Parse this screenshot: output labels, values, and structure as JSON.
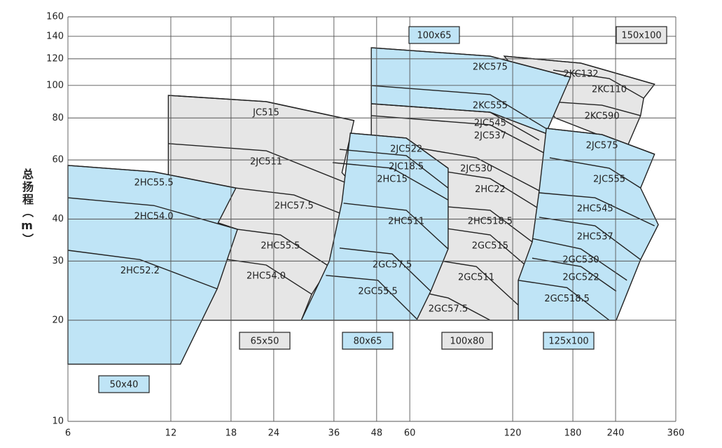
{
  "chart_data": {
    "type": "region",
    "y_label": "总扬程（m）",
    "xlim": [
      6,
      360
    ],
    "ylim": [
      10,
      160
    ],
    "log_x": true,
    "log_y": true,
    "grid": true,
    "xticks": [
      6,
      12,
      18,
      24,
      36,
      48,
      60,
      120,
      180,
      240,
      360
    ],
    "yticks": [
      10,
      20,
      30,
      40,
      60,
      80,
      100,
      120,
      140,
      160
    ],
    "groups": [
      {
        "name": "65x50",
        "color": "#e6e6e6",
        "x": [
          11.8,
          22.8,
          41.2,
          38,
          41.2,
          38,
          41.2,
          34.9,
          31,
          28.9,
          11.8
        ],
        "y": [
          93.4,
          89.5,
          78.6,
          55,
          50.2,
          44,
          40.1,
          28.9,
          23.9,
          20,
          20
        ],
        "curves": [
          {
            "name": "JC515",
            "x": [
              11.8,
              22.8,
              41.2
            ],
            "y": [
              93.4,
              89.5,
              78.6
            ]
          },
          {
            "name": "2JC511",
            "x": [
              11.8,
              22.8,
              41.2
            ],
            "y": [
              67.1,
              63.9,
              50.2
            ]
          },
          {
            "name": "2HC57.5",
            "x": [
              18.6,
              27.5,
              41.2
            ],
            "y": [
              49.5,
              47.2,
              40.1
            ]
          },
          {
            "name": "2HC55.5",
            "x": [
              18.8,
              25.1,
              34.9
            ],
            "y": [
              37.3,
              35.9,
              28.9
            ]
          },
          {
            "name": "2HC54.0",
            "x": [
              16.5,
              22.8,
              31
            ],
            "y": [
              30.6,
              29.2,
              23.9
            ]
          }
        ]
      },
      {
        "name": "50x40",
        "color": "#bfe4f6",
        "x": [
          6,
          10.7,
          18.6,
          16.5,
          18.8,
          16.4,
          12.8,
          6
        ],
        "y": [
          57.8,
          55.3,
          49.5,
          39.0,
          37.3,
          24.8,
          14.8,
          14.8
        ],
        "curves": [
          {
            "name": "2HC55.5",
            "x": [
              6,
              10.7,
              18.6
            ],
            "y": [
              57.8,
              55.3,
              49.5
            ]
          },
          {
            "name": "2HC54.0",
            "x": [
              6,
              10.7,
              18.8
            ],
            "y": [
              46.3,
              43.9,
              37.3
            ]
          },
          {
            "name": "2HC52.2",
            "x": [
              6,
              9.75,
              16.4
            ],
            "y": [
              32.3,
              30.3,
              24.8
            ]
          }
        ]
      },
      {
        "name": "100x80",
        "color": "#e6e6e6",
        "x": [
          46.3,
          103.1,
          150,
          157.7,
          143.5,
          143.5,
          136.9,
          143.5,
          127.6,
          125,
          46.3
        ],
        "y": [
          88.2,
          83.2,
          72,
          60.9,
          48.6,
          42.9,
          34.2,
          26.9,
          21.7,
          20,
          20
        ],
        "curves": [
          {
            "name": "2JC537",
            "x": [
              46.3,
              103.1,
              157.7
            ],
            "y": [
              81.3,
              76.3,
              60.9
            ]
          },
          {
            "name": "2JC530",
            "x": [
              53.3,
              93.9,
              143.5
            ],
            "y": [
              67.1,
              60.9,
              48.6
            ]
          },
          {
            "name": "2HC22",
            "x": [
              65.9,
              103.1,
              143.5
            ],
            "y": [
              56.7,
              52.8,
              42.9
            ]
          },
          {
            "name": "2HC518.5",
            "x": [
              77.7,
              103.1,
              136.9
            ],
            "y": [
              43.5,
              42.5,
              34.2
            ]
          },
          {
            "name": "2GC515",
            "x": [
              74.2,
              103.1,
              143.5
            ],
            "y": [
              37.7,
              35.9,
              26.9
            ]
          },
          {
            "name": "2GC511",
            "x": [
              65.9,
              93.9,
              127.6
            ],
            "y": [
              30.6,
              28.9,
              21.7
            ]
          },
          {
            "name": "2GC57.5",
            "x": [
              58.6,
              77.7,
              103.1
            ],
            "y": [
              24.8,
              23.3,
              20
            ]
          }
        ]
      },
      {
        "name": "80x65",
        "color": "#bfe4f6",
        "x": [
          40.2,
          58.6,
          77.7,
          77.7,
          69.1,
          62.8,
          28.9,
          34.9,
          38
        ],
        "y": [
          72.1,
          69.7,
          56.7,
          32.6,
          24.4,
          20,
          20,
          30,
          45
        ],
        "curves": [
          {
            "name": "2JC522",
            "x": [
              40.2,
              58.6,
              77.7
            ],
            "y": [
              72.1,
              69.7,
              56.7
            ]
          },
          {
            "name": "2JC18.5",
            "x": [
              37.4,
              58.6,
              77.7
            ],
            "y": [
              64.5,
              61.8,
              49.5
            ]
          },
          {
            "name": "2HC15",
            "x": [
              35.7,
              53.3,
              77.7
            ],
            "y": [
              58.9,
              56.7,
              45.6
            ]
          },
          {
            "name": "2HC511",
            "x": [
              38.4,
              58.6,
              77.7
            ],
            "y": [
              44.6,
              42.5,
              32.6
            ]
          },
          {
            "name": "2GC57.5",
            "x": [
              37.4,
              53.3,
              69.1
            ],
            "y": [
              32.8,
              31.5,
              24.4
            ]
          },
          {
            "name": "2GC55.5",
            "x": [
              34.1,
              48.4,
              62.8
            ],
            "y": [
              27.2,
              26.3,
              20.2
            ]
          }
        ]
      },
      {
        "name": "150x100",
        "color": "#e6e6e6",
        "x": [
          113.4,
          190,
          312,
          290,
          284,
          260,
          160
        ],
        "y": [
          122.2,
          116.5,
          100.8,
          91.6,
          81.3,
          66,
          80
        ],
        "curves": [
          {
            "name": "2KC132",
            "x": [
              113.4,
              190,
              312
            ],
            "y": [
              122.2,
              116.5,
              100.8
            ]
          },
          {
            "name": "2KC110",
            "x": [
              157.7,
              230,
              290
            ],
            "y": [
              111,
              104.8,
              91.6
            ]
          },
          {
            "name": "2KC590",
            "x": [
              154,
              219,
              284
            ],
            "y": [
              89.5,
              87.3,
              81.3
            ]
          }
        ]
      },
      {
        "name": "100x65",
        "color": "#bfe4f6",
        "x": [
          46.3,
          103.1,
          177,
          150,
          103.1,
          46.3
        ],
        "y": [
          129.5,
          122.2,
          105.8,
          72,
          83.2,
          88.2
        ],
        "curves": [
          {
            "name": "2KC575",
            "x": [
              46.3,
              103.1,
              177
            ],
            "y": [
              129.5,
              122.2,
              105.8
            ]
          },
          {
            "name": "2KC555",
            "x": [
              46.3,
              103.1,
              150
            ],
            "y": [
              99.9,
              93.9,
              74.5
            ]
          },
          {
            "name": "2JC545",
            "x": [
              46.3,
              103.1,
              143.5
            ],
            "y": [
              88.2,
              83.2,
              68.7
            ]
          }
        ]
      },
      {
        "name": "125x100",
        "color": "#bfe4f6",
        "x": [
          150.5,
          219,
          312,
          284,
          320,
          284,
          259,
          241,
          124.6,
          124.6,
          136.9,
          143.5,
          150
        ],
        "y": [
          74.5,
          71.4,
          62.4,
          49.5,
          38.5,
          30.3,
          24,
          20,
          20,
          26.3,
          34.2,
          48.6,
          72
        ],
        "curves": [
          {
            "name": "2JC575",
            "x": [
              150.5,
              219,
              312
            ],
            "y": [
              74.5,
              71.4,
              62.4
            ]
          },
          {
            "name": "2JC555",
            "x": [
              154,
              230,
              284
            ],
            "y": [
              60.9,
              56.7,
              49.5
            ]
          },
          {
            "name": "2HC545",
            "x": [
              143.5,
              209,
              312
            ],
            "y": [
              47.9,
              46.3,
              38.2
            ]
          },
          {
            "name": "2HC537",
            "x": [
              143.5,
              209,
              284
            ],
            "y": [
              40.5,
              38.2,
              30.3
            ]
          },
          {
            "name": "2GC530",
            "x": [
              136.9,
              190,
              259
            ],
            "y": [
              35,
              32.6,
              26.3
            ]
          },
          {
            "name": "2GC522",
            "x": [
              136.9,
              190,
              241
            ],
            "y": [
              30.6,
              28.9,
              24.4
            ]
          },
          {
            "name": "2GC518.5",
            "x": [
              124.6,
              173,
              230
            ],
            "y": [
              26.3,
              25,
              20
            ]
          }
        ]
      }
    ]
  }
}
